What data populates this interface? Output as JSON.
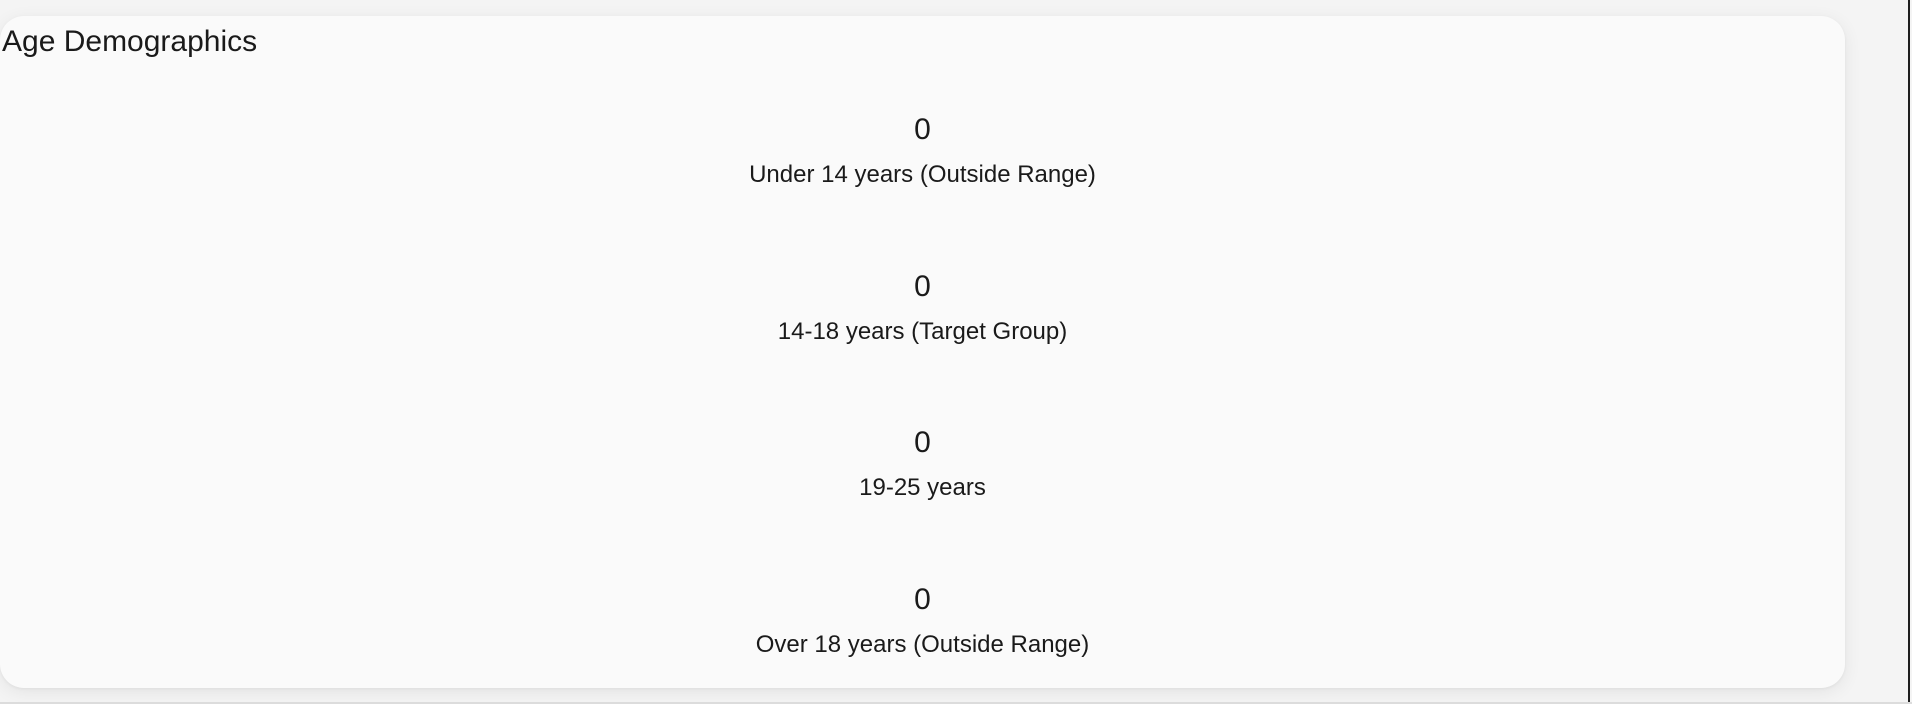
{
  "card": {
    "title": "Age Demographics"
  },
  "groups": [
    {
      "value": "0",
      "label": "Under 14 years (Outside Range)"
    },
    {
      "value": "0",
      "label": "14-18 years (Target Group)"
    },
    {
      "value": "0",
      "label": "19-25 years"
    },
    {
      "value": "0",
      "label": "Over 18 years (Outside Range)"
    }
  ],
  "colors": {
    "background": "#f4f4f4",
    "card": "#fafafa",
    "text": "#1a1a1a",
    "right_frame": "#1e1e1e"
  }
}
